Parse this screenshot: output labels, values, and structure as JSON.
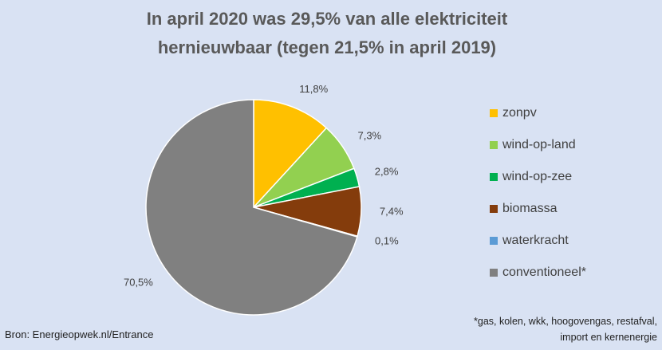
{
  "chart_data": {
    "type": "pie",
    "title": "In april 2020 was 29,5% van alle elektriciteit hernieuwbaar (tegen 21,5% in april 2019)",
    "categories": [
      "zonpv",
      "wind-op-land",
      "wind-op-zee",
      "biomassa",
      "waterkracht",
      "conventioneel*"
    ],
    "values": [
      11.8,
      7.3,
      2.8,
      7.4,
      0.1,
      70.5
    ],
    "value_labels": [
      "11,8%",
      "7,3%",
      "2,8%",
      "7,4%",
      "0,1%",
      "70,5%"
    ],
    "colors": [
      "#ffc000",
      "#92d050",
      "#00b050",
      "#843c0c",
      "#5b9bd5",
      "#808080"
    ],
    "source": "Bron: Energieopwek.nl/Entrance",
    "footnote": "*gas, kolen, wkk, hoogovengas, restafval, import en kernenergie"
  }
}
